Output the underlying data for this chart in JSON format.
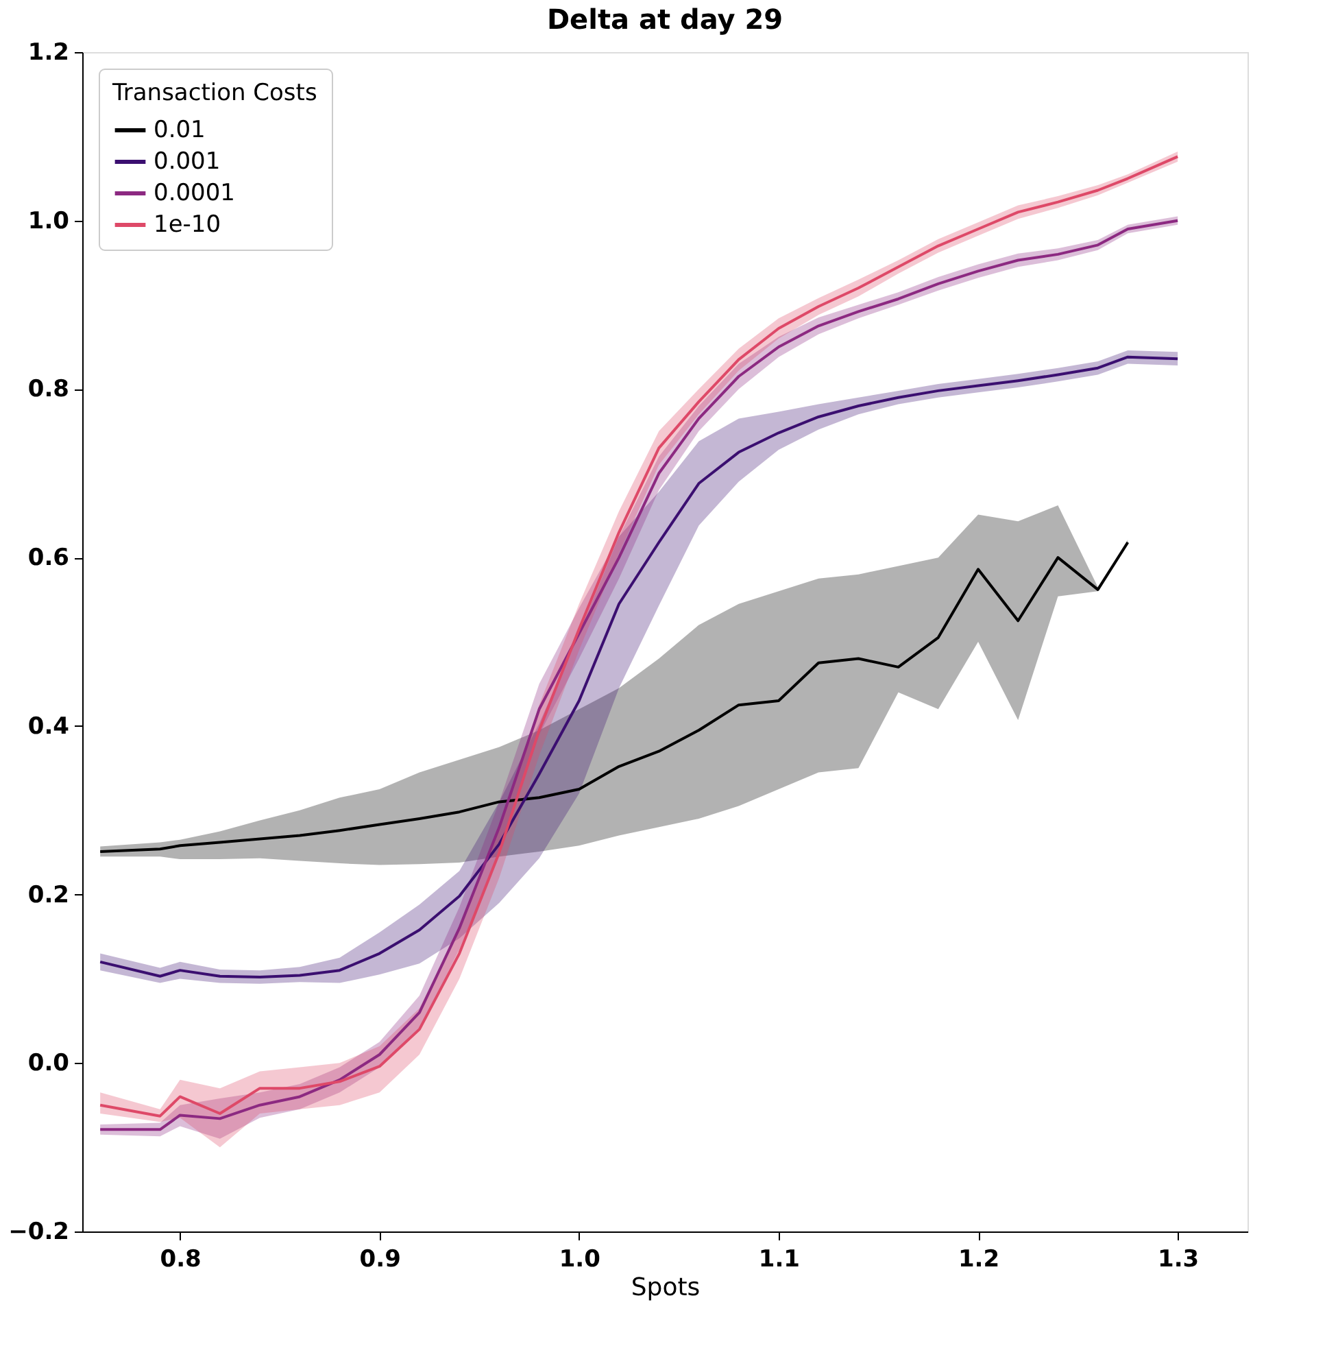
{
  "chart_data": {
    "type": "line",
    "title": "Delta at day 29",
    "xlabel": "Spots",
    "legend_title": "Transaction Costs",
    "legend": "top left",
    "grid": false,
    "line_style": "solid",
    "marker": "none",
    "x": [
      0.76,
      0.79,
      0.8,
      0.82,
      0.84,
      0.86,
      0.88,
      0.9,
      0.92,
      0.94,
      0.96,
      0.98,
      1.0,
      1.02,
      1.04,
      1.06,
      1.08,
      1.1,
      1.12,
      1.14,
      1.16,
      1.18,
      1.2,
      1.22,
      1.24,
      1.26,
      1.275,
      1.3
    ],
    "xlim": [
      0.751,
      1.335
    ],
    "xticks": [
      0.8,
      0.9,
      {
        "value": 1.0,
        "label": "1.0"
      },
      1.1,
      1.2,
      1.3
    ],
    "ylim": [
      -0.2,
      1.2
    ],
    "yticks": [
      {
        "value": -0.2,
        "label": "−0.2"
      },
      {
        "value": 0.0,
        "label": "0.0"
      },
      0.2,
      0.4,
      0.6,
      0.8,
      {
        "value": 1.0,
        "label": "1.0"
      },
      1.2
    ],
    "series": [
      {
        "name": "0.01",
        "color": "#000000",
        "values": [
          0.251,
          0.254,
          0.258,
          0.262,
          0.266,
          0.27,
          0.276,
          0.283,
          0.29,
          0.298,
          0.31,
          0.315,
          0.325,
          0.352,
          0.37,
          0.395,
          0.425,
          0.43,
          0.475,
          0.48,
          0.47,
          0.505,
          0.586,
          0.525,
          0.6,
          0.562,
          0.618,
          null
        ],
        "lower": [
          0.245,
          0.245,
          0.242,
          0.242,
          0.243,
          0.24,
          0.237,
          0.235,
          0.236,
          0.238,
          0.245,
          0.251,
          0.258,
          0.27,
          0.28,
          0.29,
          0.305,
          0.325,
          0.345,
          0.35,
          0.44,
          0.42,
          0.5,
          0.407,
          0.554,
          0.56,
          0.615,
          null
        ],
        "upper": [
          0.257,
          0.262,
          0.265,
          0.275,
          0.288,
          0.3,
          0.315,
          0.325,
          0.345,
          0.36,
          0.375,
          0.395,
          0.42,
          0.445,
          0.48,
          0.52,
          0.545,
          0.56,
          0.575,
          0.58,
          0.59,
          0.6,
          0.651,
          0.643,
          0.662,
          0.565,
          0.621,
          null
        ]
      },
      {
        "name": "0.001",
        "color": "#3b0f70",
        "values": [
          0.12,
          0.103,
          0.11,
          0.103,
          0.102,
          0.104,
          0.11,
          0.13,
          0.158,
          0.198,
          0.26,
          0.343,
          0.43,
          0.545,
          0.618,
          0.688,
          0.725,
          0.748,
          0.767,
          0.78,
          0.79,
          0.798,
          0.804,
          0.81,
          0.817,
          0.825,
          0.838,
          0.836
        ],
        "lower": [
          0.11,
          0.095,
          0.1,
          0.095,
          0.094,
          0.096,
          0.095,
          0.105,
          0.118,
          0.148,
          0.19,
          0.243,
          0.32,
          0.445,
          0.543,
          0.638,
          0.69,
          0.728,
          0.752,
          0.77,
          0.782,
          0.79,
          0.796,
          0.802,
          0.809,
          0.817,
          0.83,
          0.828
        ],
        "upper": [
          0.13,
          0.113,
          0.12,
          0.111,
          0.11,
          0.114,
          0.125,
          0.155,
          0.188,
          0.228,
          0.31,
          0.403,
          0.51,
          0.625,
          0.678,
          0.738,
          0.765,
          0.773,
          0.782,
          0.79,
          0.798,
          0.806,
          0.812,
          0.818,
          0.825,
          0.833,
          0.846,
          0.844
        ]
      },
      {
        "name": "0.0001",
        "color": "#8c2981",
        "values": [
          -0.079,
          -0.079,
          -0.062,
          -0.066,
          -0.05,
          -0.04,
          -0.02,
          0.01,
          0.06,
          0.16,
          0.28,
          0.42,
          0.51,
          0.6,
          0.7,
          0.765,
          0.815,
          0.85,
          0.875,
          0.892,
          0.907,
          0.925,
          0.94,
          0.953,
          0.96,
          0.971,
          0.99,
          1.0
        ],
        "lower": [
          -0.085,
          -0.087,
          -0.075,
          -0.09,
          -0.065,
          -0.055,
          -0.035,
          -0.005,
          0.04,
          0.135,
          0.25,
          0.39,
          0.48,
          0.575,
          0.68,
          0.75,
          0.8,
          0.838,
          0.865,
          0.884,
          0.9,
          0.917,
          0.932,
          0.945,
          0.953,
          0.965,
          0.985,
          0.995
        ],
        "upper": [
          -0.073,
          -0.071,
          -0.05,
          -0.042,
          -0.035,
          -0.025,
          -0.005,
          0.025,
          0.08,
          0.185,
          0.31,
          0.45,
          0.54,
          0.625,
          0.72,
          0.78,
          0.83,
          0.862,
          0.885,
          0.9,
          0.915,
          0.933,
          0.948,
          0.961,
          0.967,
          0.977,
          0.995,
          1.005
        ]
      },
      {
        "name": "1e-10",
        "color": "#de4968",
        "values": [
          -0.05,
          -0.063,
          -0.04,
          -0.06,
          -0.03,
          -0.03,
          -0.022,
          -0.004,
          0.04,
          0.13,
          0.25,
          0.395,
          0.515,
          0.63,
          0.73,
          0.785,
          0.835,
          0.872,
          0.898,
          0.92,
          0.945,
          0.97,
          0.99,
          1.01,
          1.022,
          1.036,
          1.05,
          1.076
        ],
        "lower": [
          -0.06,
          -0.07,
          -0.065,
          -0.1,
          -0.06,
          -0.055,
          -0.05,
          -0.035,
          0.01,
          0.1,
          0.22,
          0.365,
          0.49,
          0.605,
          0.71,
          0.77,
          0.822,
          0.86,
          0.888,
          0.91,
          0.937,
          0.962,
          0.982,
          1.002,
          1.015,
          1.03,
          1.045,
          1.07
        ],
        "upper": [
          -0.035,
          -0.055,
          -0.02,
          -0.03,
          -0.01,
          -0.005,
          0.0,
          0.02,
          0.065,
          0.16,
          0.28,
          0.425,
          0.545,
          0.655,
          0.75,
          0.8,
          0.848,
          0.884,
          0.908,
          0.93,
          0.953,
          0.978,
          0.998,
          1.018,
          1.029,
          1.042,
          1.055,
          1.082
        ]
      }
    ]
  }
}
